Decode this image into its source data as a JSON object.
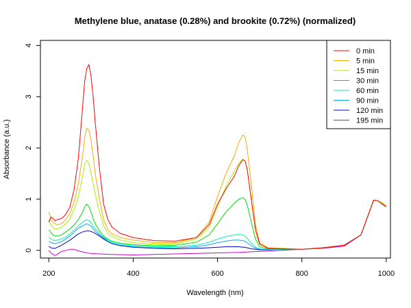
{
  "chart_data": {
    "type": "line",
    "title": "Methylene blue, anatase (0.28%) and brookite (0.72%) (normalized)",
    "xlabel": "Wavelength (nm)",
    "ylabel": "Absorbance (a.u.)",
    "xlim": [
      180,
      1010
    ],
    "ylim": [
      -0.15,
      4.1
    ],
    "xticks": [
      200,
      400,
      600,
      800,
      1000
    ],
    "yticks": [
      0,
      1,
      2,
      3,
      4
    ],
    "grid": false,
    "legend_position": "top-right",
    "series": [
      {
        "name": "0 min",
        "color": "#ff0000",
        "x": [
          200,
          205,
          210,
          215,
          220,
          230,
          240,
          250,
          260,
          270,
          280,
          285,
          290,
          295,
          300,
          305,
          310,
          320,
          330,
          340,
          350,
          370,
          400,
          450,
          500,
          550,
          580,
          600,
          620,
          640,
          650,
          660,
          665,
          670,
          680,
          690,
          700,
          720,
          750,
          800,
          850,
          900,
          940,
          960,
          970,
          980,
          990,
          1000
        ],
        "y": [
          0.55,
          0.65,
          0.62,
          0.58,
          0.6,
          0.62,
          0.7,
          0.85,
          1.2,
          1.8,
          2.8,
          3.3,
          3.55,
          3.63,
          3.4,
          3.0,
          2.5,
          1.6,
          0.9,
          0.6,
          0.45,
          0.33,
          0.25,
          0.19,
          0.18,
          0.25,
          0.5,
          0.9,
          1.2,
          1.45,
          1.65,
          1.77,
          1.75,
          1.6,
          1.0,
          0.4,
          0.12,
          0.04,
          0.03,
          0.02,
          0.05,
          0.1,
          0.3,
          0.75,
          0.98,
          0.97,
          0.9,
          0.85
        ]
      },
      {
        "name": "5 min",
        "color": "#ffa500",
        "x": [
          200,
          205,
          210,
          215,
          220,
          230,
          240,
          250,
          260,
          270,
          280,
          285,
          290,
          295,
          300,
          305,
          310,
          320,
          330,
          340,
          350,
          370,
          400,
          450,
          500,
          550,
          580,
          600,
          620,
          640,
          650,
          660,
          665,
          670,
          680,
          690,
          700,
          720,
          750,
          800,
          850,
          900,
          940,
          960,
          970,
          980,
          990,
          1000
        ],
        "y": [
          0.75,
          0.6,
          0.55,
          0.52,
          0.5,
          0.52,
          0.6,
          0.72,
          0.95,
          1.3,
          1.85,
          2.2,
          2.38,
          2.35,
          2.15,
          1.85,
          1.5,
          1.0,
          0.6,
          0.4,
          0.32,
          0.25,
          0.2,
          0.15,
          0.15,
          0.25,
          0.55,
          1.05,
          1.5,
          1.85,
          2.1,
          2.25,
          2.22,
          2.0,
          1.3,
          0.5,
          0.15,
          0.05,
          0.04,
          0.02,
          0.05,
          0.1,
          0.3,
          0.75,
          0.98,
          0.97,
          0.92,
          0.87
        ]
      },
      {
        "name": "15 min",
        "color": "#aaee00",
        "x": [
          200,
          205,
          210,
          215,
          220,
          230,
          240,
          250,
          260,
          270,
          280,
          285,
          290,
          295,
          300,
          305,
          310,
          320,
          330,
          340,
          350,
          370,
          400,
          450,
          500,
          550,
          580,
          600,
          620,
          640,
          650,
          660,
          665,
          670,
          680,
          690,
          700,
          720,
          750,
          800,
          850,
          900,
          940,
          960,
          970,
          980,
          990,
          1000
        ],
        "y": [
          0.6,
          0.5,
          0.45,
          0.42,
          0.42,
          0.45,
          0.52,
          0.62,
          0.8,
          1.05,
          1.45,
          1.68,
          1.76,
          1.7,
          1.5,
          1.3,
          1.1,
          0.75,
          0.48,
          0.33,
          0.27,
          0.2,
          0.15,
          0.12,
          0.13,
          0.22,
          0.45,
          0.85,
          1.25,
          1.55,
          1.7,
          1.78,
          1.75,
          1.6,
          1.0,
          0.4,
          0.12,
          0.04,
          0.03,
          0.02,
          0.05,
          0.1,
          0.3,
          0.75,
          0.98,
          0.97,
          0.92,
          0.86
        ]
      },
      {
        "name": "30 min",
        "color": "#00dd00",
        "x": [
          200,
          205,
          210,
          215,
          220,
          230,
          240,
          250,
          260,
          270,
          280,
          285,
          290,
          295,
          300,
          305,
          310,
          320,
          330,
          340,
          350,
          370,
          400,
          450,
          500,
          550,
          580,
          600,
          620,
          640,
          650,
          660,
          665,
          670,
          680,
          690,
          700,
          720,
          750,
          800,
          850,
          900,
          940,
          960,
          970,
          980,
          990,
          1000
        ],
        "y": [
          0.4,
          0.35,
          0.3,
          0.28,
          0.28,
          0.3,
          0.36,
          0.42,
          0.5,
          0.6,
          0.75,
          0.85,
          0.9,
          0.86,
          0.75,
          0.62,
          0.52,
          0.38,
          0.28,
          0.22,
          0.18,
          0.14,
          0.11,
          0.09,
          0.1,
          0.16,
          0.3,
          0.52,
          0.75,
          0.92,
          1.0,
          1.03,
          1.0,
          0.9,
          0.55,
          0.22,
          0.07,
          0.03,
          0.03,
          0.02,
          0.05,
          0.1,
          0.3,
          0.75,
          0.98,
          0.97,
          0.93,
          0.87
        ]
      },
      {
        "name": "60 min",
        "color": "#00eeaa",
        "x": [
          200,
          205,
          210,
          215,
          220,
          230,
          240,
          250,
          260,
          270,
          280,
          285,
          290,
          295,
          300,
          305,
          310,
          320,
          330,
          340,
          350,
          370,
          400,
          450,
          500,
          550,
          580,
          600,
          620,
          640,
          650,
          660,
          665,
          670,
          680,
          690,
          700,
          720,
          750,
          800,
          850,
          900,
          940,
          960,
          970,
          980,
          990,
          1000
        ],
        "y": [
          0.25,
          0.22,
          0.2,
          0.19,
          0.2,
          0.22,
          0.26,
          0.32,
          0.4,
          0.48,
          0.55,
          0.58,
          0.6,
          0.58,
          0.54,
          0.48,
          0.42,
          0.33,
          0.26,
          0.2,
          0.16,
          0.12,
          0.09,
          0.07,
          0.07,
          0.1,
          0.16,
          0.22,
          0.27,
          0.3,
          0.31,
          0.3,
          0.28,
          0.24,
          0.14,
          0.06,
          0.03,
          0.02,
          0.02,
          0.02,
          0.05,
          0.1,
          0.3,
          0.75,
          0.98,
          0.97,
          0.92,
          0.86
        ]
      },
      {
        "name": "90 min",
        "color": "#00aaee",
        "x": [
          200,
          205,
          210,
          215,
          220,
          230,
          240,
          250,
          260,
          270,
          280,
          285,
          290,
          295,
          300,
          305,
          310,
          320,
          330,
          340,
          350,
          370,
          400,
          450,
          500,
          550,
          580,
          600,
          620,
          640,
          650,
          660,
          665,
          670,
          680,
          690,
          700,
          720,
          750,
          800,
          850,
          900,
          940,
          960,
          970,
          980,
          990,
          1000
        ],
        "y": [
          0.18,
          0.15,
          0.14,
          0.13,
          0.14,
          0.17,
          0.22,
          0.28,
          0.36,
          0.43,
          0.48,
          0.5,
          0.52,
          0.5,
          0.47,
          0.42,
          0.37,
          0.3,
          0.24,
          0.18,
          0.14,
          0.1,
          0.07,
          0.05,
          0.05,
          0.07,
          0.11,
          0.15,
          0.18,
          0.2,
          0.2,
          0.19,
          0.18,
          0.15,
          0.09,
          0.04,
          0.02,
          0.02,
          0.02,
          0.02,
          0.05,
          0.1,
          0.3,
          0.75,
          0.98,
          0.97,
          0.92,
          0.86
        ]
      },
      {
        "name": "120 min",
        "color": "#0000cc",
        "x": [
          200,
          205,
          210,
          215,
          220,
          230,
          240,
          250,
          260,
          270,
          280,
          285,
          290,
          295,
          300,
          305,
          310,
          320,
          330,
          340,
          350,
          370,
          400,
          450,
          500,
          550,
          580,
          600,
          620,
          640,
          650,
          660,
          665,
          670,
          680,
          690,
          700,
          720,
          750,
          800,
          850,
          900,
          940,
          960,
          970,
          980,
          990,
          1000
        ],
        "y": [
          0.08,
          0.05,
          0.04,
          0.04,
          0.06,
          0.1,
          0.15,
          0.2,
          0.26,
          0.32,
          0.36,
          0.37,
          0.38,
          0.38,
          0.37,
          0.35,
          0.33,
          0.28,
          0.22,
          0.17,
          0.13,
          0.09,
          0.06,
          0.04,
          0.03,
          0.04,
          0.05,
          0.06,
          0.07,
          0.07,
          0.07,
          0.06,
          0.06,
          0.05,
          0.03,
          0.02,
          0.01,
          0.01,
          0.02,
          0.02,
          0.05,
          0.1,
          0.3,
          0.75,
          0.98,
          0.97,
          0.92,
          0.86
        ]
      },
      {
        "name": "195 min",
        "color": "#cc00cc",
        "x": [
          200,
          205,
          210,
          215,
          220,
          230,
          240,
          250,
          260,
          270,
          280,
          290,
          300,
          320,
          350,
          400,
          450,
          500,
          550,
          600,
          650,
          700,
          750,
          800,
          850,
          900,
          940,
          960,
          970,
          980,
          990,
          1000
        ],
        "y": [
          0.0,
          -0.05,
          -0.08,
          -0.1,
          -0.08,
          -0.02,
          0.0,
          0.02,
          0.02,
          -0.01,
          -0.03,
          -0.05,
          -0.06,
          -0.07,
          -0.08,
          -0.09,
          -0.08,
          -0.07,
          -0.06,
          -0.05,
          -0.04,
          -0.02,
          0.0,
          0.02,
          0.04,
          0.08,
          0.3,
          0.75,
          0.98,
          0.97,
          0.92,
          0.86
        ]
      }
    ]
  }
}
